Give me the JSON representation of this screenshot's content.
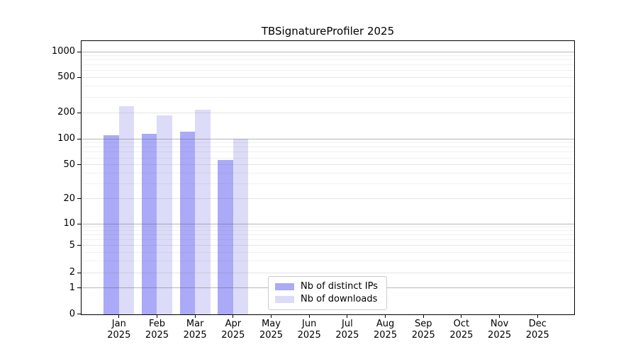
{
  "chart_data": {
    "type": "bar",
    "title": "TBSignatureProfiler 2025",
    "categories": [
      "Jan 2025",
      "Feb 2025",
      "Mar 2025",
      "Apr 2025",
      "May 2025",
      "Jun 2025",
      "Jul 2025",
      "Aug 2025",
      "Sep 2025",
      "Oct 2025",
      "Nov 2025",
      "Dec 2025"
    ],
    "series": [
      {
        "name": "Nb of distinct IPs",
        "color": "#aaaaf8",
        "values": [
          110,
          115,
          120,
          57,
          0,
          0,
          0,
          0,
          0,
          0,
          0,
          0
        ]
      },
      {
        "name": "Nb of downloads",
        "color": "#dcdcf8",
        "values": [
          235,
          185,
          215,
          100,
          0,
          0,
          0,
          0,
          0,
          0,
          0,
          0
        ]
      }
    ],
    "yticks": [
      0,
      1,
      2,
      5,
      10,
      20,
      50,
      100,
      200,
      500,
      1000
    ],
    "ylim": [
      0,
      1000
    ],
    "yscale": "symlog",
    "xlabel": "",
    "ylabel": "",
    "grid": "horizontal",
    "legend_position": "lower-center"
  },
  "legend": {
    "items": [
      {
        "label": "Nb of distinct IPs"
      },
      {
        "label": "Nb of downloads"
      }
    ]
  }
}
